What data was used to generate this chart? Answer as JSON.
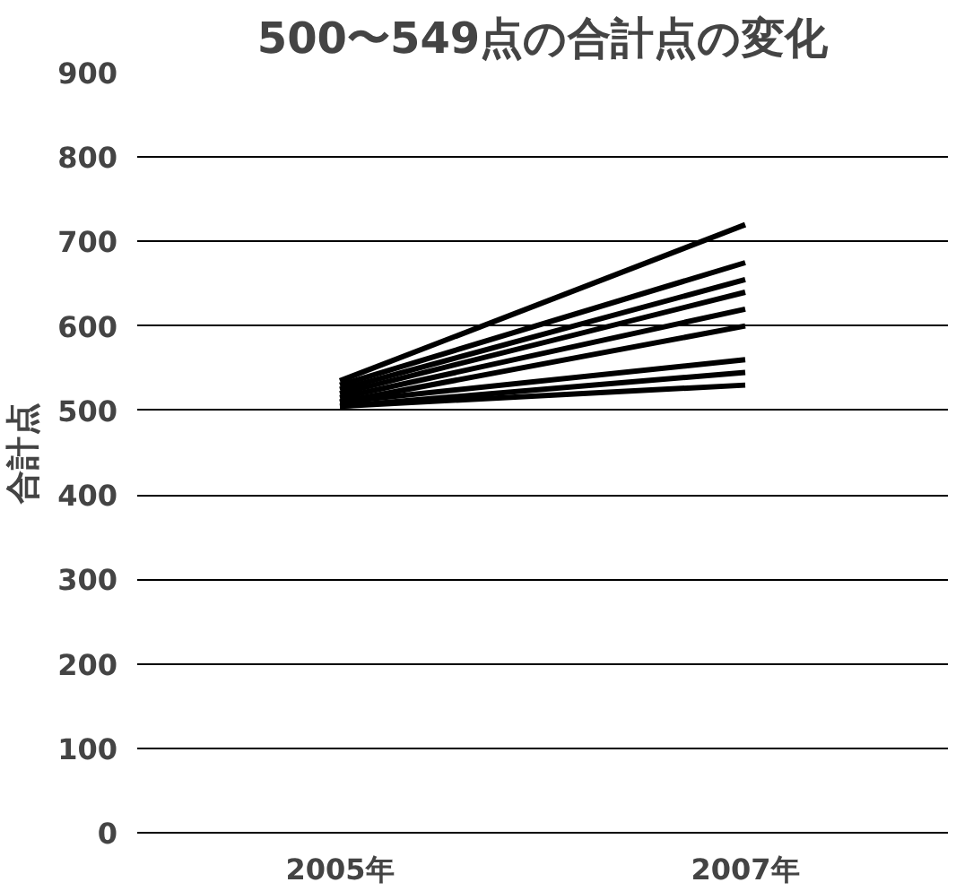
{
  "chart_data": {
    "type": "line",
    "title": "500〜549点の合計点の変化",
    "ylabel": "合計点",
    "categories": [
      "2005年",
      "2007年"
    ],
    "ylim": [
      0,
      900
    ],
    "yticks": [
      0,
      100,
      200,
      300,
      400,
      500,
      600,
      700,
      800,
      900
    ],
    "grid": "y",
    "marker": "none",
    "line_style": "solid",
    "series": [
      {
        "color": "#000000",
        "values": [
          535,
          720
        ]
      },
      {
        "color": "#000000",
        "values": [
          530,
          675
        ]
      },
      {
        "color": "#000000",
        "values": [
          525,
          655
        ]
      },
      {
        "color": "#000000",
        "values": [
          520,
          640
        ]
      },
      {
        "color": "#000000",
        "values": [
          515,
          620
        ]
      },
      {
        "color": "#000000",
        "values": [
          510,
          600
        ]
      },
      {
        "color": "#000000",
        "values": [
          510,
          560
        ]
      },
      {
        "color": "#000000",
        "values": [
          505,
          545
        ]
      },
      {
        "color": "#000000",
        "values": [
          505,
          530
        ]
      }
    ]
  }
}
